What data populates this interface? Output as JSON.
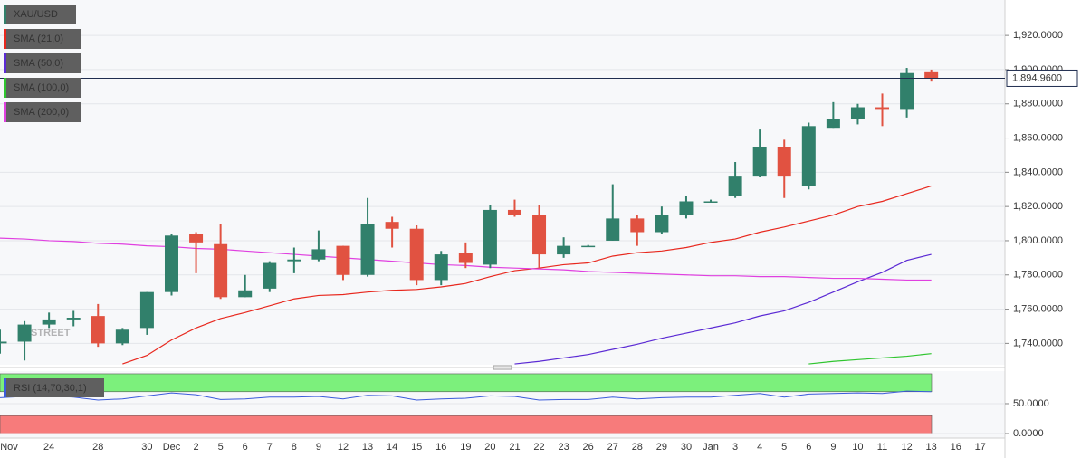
{
  "chart_data": [
    {
      "type": "candlestick",
      "title": "XAU/USD",
      "watermark": "FXSTREET",
      "categories": [
        "Nov",
        null,
        "24",
        null,
        "28",
        null,
        "30",
        "Dec",
        "2",
        "5",
        "6",
        "7",
        "8",
        "9",
        "12",
        "13",
        "14",
        "15",
        "16",
        "19",
        "20",
        "21",
        "22",
        "23",
        "26",
        "27",
        "28",
        "29",
        "30",
        "Jan",
        "3",
        "4",
        "5",
        "6",
        "9",
        "10",
        "11",
        "12",
        "13",
        "16",
        "17"
      ],
      "open": [
        1740,
        1741,
        1751,
        1754,
        1756,
        1740,
        1749,
        1770,
        1804,
        1798,
        1767,
        1772,
        1788,
        1789,
        1797,
        1780,
        1811,
        1807,
        1777,
        1793,
        1786,
        1818,
        1815,
        1792,
        1797,
        1800,
        1813,
        1805,
        1815,
        1823,
        1826,
        1838,
        1855,
        1832,
        1866,
        1871,
        1878,
        1877,
        1899,
        null,
        null
      ],
      "high": [
        1748,
        1753,
        1758,
        1759,
        1763,
        1749,
        1770,
        1804,
        1805,
        1810,
        1780,
        1788,
        1796,
        1806,
        1797,
        1825,
        1814,
        1809,
        1794,
        1799,
        1821,
        1824,
        1821,
        1802,
        1797.5,
        1833,
        1815,
        1820,
        1826,
        1824,
        1846,
        1865,
        1859,
        1869,
        1881,
        1880,
        1886,
        1901,
        1900,
        null,
        null
      ],
      "low": [
        1734,
        1730,
        1749,
        1750,
        1738,
        1739,
        1745,
        1768,
        1781,
        1766,
        1767,
        1770,
        1781,
        1788,
        1777,
        1779,
        1796,
        1774,
        1774,
        1784,
        1784,
        1814,
        1784,
        1790,
        1796.5,
        1800,
        1797,
        1804,
        1813,
        1823,
        1825,
        1837,
        1825,
        1830,
        1866,
        1868,
        1867,
        1872,
        1893,
        null,
        null
      ],
      "close": [
        1741,
        1751,
        1754,
        1755,
        1740,
        1748,
        1770,
        1803,
        1799,
        1767,
        1771,
        1787,
        1789,
        1795,
        1780,
        1810,
        1807,
        1777,
        1792,
        1787,
        1818,
        1815,
        1792,
        1797,
        1797,
        1813,
        1805,
        1815,
        1823,
        1823,
        1838,
        1855,
        1838,
        1867,
        1871,
        1878,
        1877,
        1898,
        1895,
        null,
        null
      ],
      "up_color": "#31806b",
      "down_color": "#e15241",
      "series": [
        {
          "name": "SMA (21,0)",
          "color": "#e8281e",
          "values": [
            null,
            null,
            null,
            null,
            null,
            1728,
            1733,
            1742,
            1749,
            1754.5,
            1758,
            1762,
            1766,
            1768,
            1768.5,
            1770,
            1771,
            1771.5,
            1773,
            1775,
            1779,
            1782.5,
            1784,
            1786,
            1787,
            1791,
            1793,
            1794,
            1796,
            1799,
            1801,
            1805,
            1808,
            1811.5,
            1815,
            1820,
            1823,
            1827.5,
            1832,
            null,
            null
          ]
        },
        {
          "name": "SMA (50,0)",
          "color": "#5b2ad4",
          "values": [
            null,
            null,
            null,
            null,
            null,
            null,
            null,
            null,
            null,
            null,
            null,
            null,
            null,
            null,
            null,
            null,
            null,
            null,
            null,
            null,
            null,
            1728,
            1729.5,
            1731.5,
            1733.5,
            1736.5,
            1739.5,
            1743,
            1746,
            1749,
            1752,
            1756,
            1759,
            1764,
            1770,
            1776,
            1781.5,
            1788.5,
            1792,
            null,
            null
          ]
        },
        {
          "name": "SMA (100,0)",
          "color": "#2fc52f",
          "values": [
            null,
            null,
            null,
            null,
            null,
            null,
            null,
            null,
            null,
            null,
            null,
            null,
            null,
            null,
            null,
            null,
            null,
            null,
            null,
            null,
            null,
            null,
            null,
            null,
            null,
            null,
            null,
            null,
            null,
            null,
            null,
            null,
            null,
            1728,
            1729.5,
            1730.5,
            1731.5,
            1732.5,
            1734,
            null,
            null
          ]
        },
        {
          "name": "SMA (200,0)",
          "color": "#e040e0",
          "values": [
            1801.5,
            1801,
            1800,
            1799.5,
            1798.5,
            1798,
            1797,
            1796.5,
            1795.5,
            1795,
            1794,
            1793,
            1792,
            1791,
            1790,
            1789,
            1788,
            1787,
            1786,
            1785.5,
            1784.5,
            1784,
            1783.5,
            1783,
            1782,
            1781.5,
            1781,
            1780.5,
            1780,
            1779.5,
            1779.5,
            1779,
            1779,
            1778.5,
            1778,
            1778,
            1777.5,
            1777,
            1777,
            null,
            null
          ]
        }
      ],
      "last_price": {
        "value": 1894.96,
        "label": "1,894.9600"
      },
      "ylim": [
        1727.5,
        1940.7
      ],
      "yticks": [
        {
          "value": 1740,
          "label": "1,740.0000"
        },
        {
          "value": 1760,
          "label": "1,760.0000"
        },
        {
          "value": 1780,
          "label": "1,780.0000"
        },
        {
          "value": 1800,
          "label": "1,800.0000"
        },
        {
          "value": 1820,
          "label": "1,820.0000"
        },
        {
          "value": 1840,
          "label": "1,840.0000"
        },
        {
          "value": 1860,
          "label": "1,860.0000"
        },
        {
          "value": 1880,
          "label": "1,880.0000"
        },
        {
          "value": 1900,
          "label": "1,900.0000"
        },
        {
          "value": 1920,
          "label": "1,920.0000"
        }
      ],
      "grid": true
    },
    {
      "type": "line",
      "title": "RSI (14,70,30,1)",
      "color": "#3b5bdb",
      "values": [
        60,
        62,
        63,
        61,
        56,
        58,
        63,
        68,
        65,
        57,
        58,
        61,
        61,
        62,
        58,
        64,
        63,
        56,
        58,
        59,
        63,
        62,
        56,
        57,
        57,
        61,
        58,
        60,
        61,
        61,
        64,
        67,
        61,
        66,
        67,
        68,
        67,
        71,
        70,
        null,
        null
      ],
      "bands": [
        {
          "from": 70,
          "to": 100,
          "color": "#7cf07c"
        },
        {
          "from": 0,
          "to": 30,
          "color": "#f77b7b"
        }
      ],
      "ylim": [
        -7.6,
        104.5
      ],
      "yticks": [
        {
          "value": 0,
          "label": "0.0000"
        },
        {
          "value": 50,
          "label": "50.0000"
        }
      ],
      "grid": true
    }
  ]
}
